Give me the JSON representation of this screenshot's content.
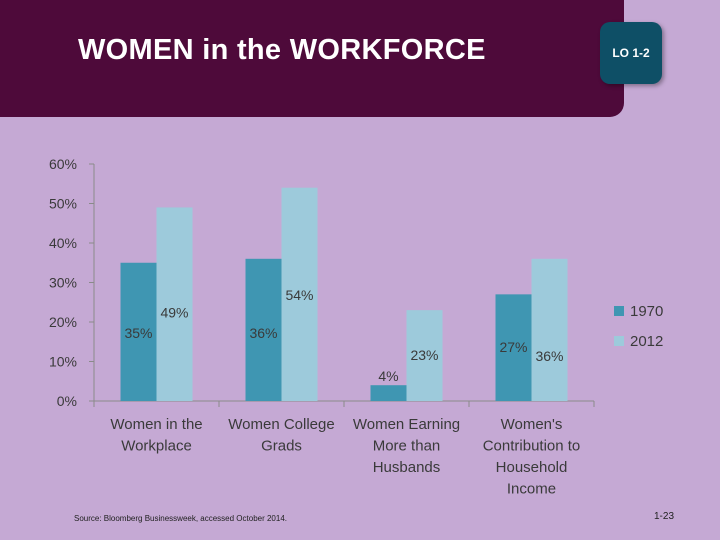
{
  "slide": {
    "title": "WOMEN in the WORKFORCE",
    "badge": "LO 1-2",
    "source": "Source: Bloomberg Businessweek, accessed October 2014.",
    "page_number": "1-23"
  },
  "colors": {
    "banner": "#4e0a3a",
    "badge": "#0e4f66",
    "background": "#c5a9d4",
    "series_1970": "#3f96b2",
    "series_2012": "#9dcadb"
  },
  "chart_data": {
    "type": "bar",
    "categories": [
      [
        "Women in the",
        "Workplace"
      ],
      [
        "Women College",
        "Grads"
      ],
      [
        "Women Earning",
        "More than",
        "Husbands"
      ],
      [
        "Women's",
        "Contribution to",
        "Household",
        "Income"
      ]
    ],
    "series": [
      {
        "name": "1970",
        "values": [
          35,
          36,
          4,
          27
        ],
        "labels": [
          "35%",
          "36%",
          "4%",
          "27%"
        ]
      },
      {
        "name": "2012",
        "values": [
          49,
          54,
          23,
          36
        ],
        "labels": [
          "49%",
          "54%",
          "23%",
          "36%"
        ]
      }
    ],
    "ylim": [
      0,
      60
    ],
    "yticks": [
      0,
      10,
      20,
      30,
      40,
      50,
      60
    ],
    "ytick_labels": [
      "0%",
      "10%",
      "20%",
      "30%",
      "40%",
      "50%",
      "60%"
    ],
    "legend_position": "right",
    "grid": false,
    "xlabel": "",
    "ylabel": ""
  }
}
